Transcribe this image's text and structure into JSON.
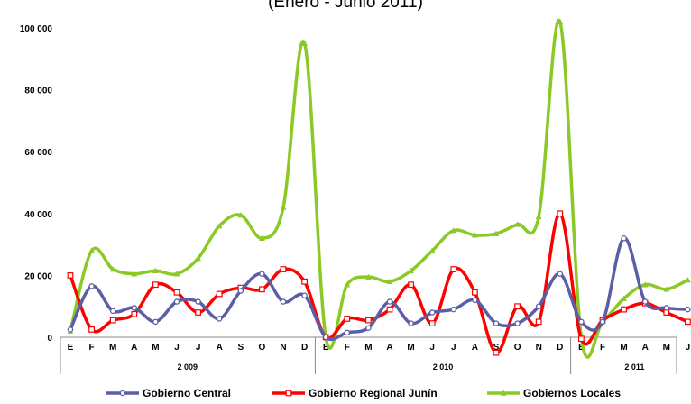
{
  "chart_data": {
    "type": "line",
    "subtitle": "(Enero - Junio 2011)",
    "categories": [
      "E",
      "F",
      "M",
      "A",
      "M",
      "J",
      "J",
      "A",
      "S",
      "O",
      "N",
      "D",
      "E",
      "F",
      "M",
      "A",
      "M",
      "J",
      "J",
      "A",
      "S",
      "O",
      "N",
      "D",
      "E",
      "F",
      "M",
      "A",
      "M",
      "J"
    ],
    "year_groups": [
      {
        "label": "2 009",
        "start": 0,
        "end": 11
      },
      {
        "label": "2 010",
        "start": 12,
        "end": 23
      },
      {
        "label": "2 011",
        "start": 24,
        "end": 29
      }
    ],
    "y_ticks": [
      "0",
      "20 000",
      "40 000",
      "60 000",
      "80 000",
      "100 000"
    ],
    "ylim": [
      0,
      100000
    ],
    "series": [
      {
        "name": "Gobierno Central",
        "color": "#5b5ea6",
        "marker": "circle",
        "values": [
          2500,
          16500,
          8500,
          9500,
          5000,
          11500,
          11500,
          6000,
          15000,
          20500,
          11500,
          13500,
          0,
          1500,
          3000,
          11500,
          4500,
          8000,
          9000,
          12000,
          4500,
          4500,
          10000,
          20500,
          5000,
          5000,
          32000,
          11500,
          9500,
          9000
        ]
      },
      {
        "name": "Gobierno Regional Junín",
        "color": "#ff0000",
        "marker": "square",
        "values": [
          20000,
          2500,
          5500,
          7500,
          17000,
          14500,
          8000,
          14000,
          16000,
          15500,
          22000,
          18000,
          0,
          6000,
          5500,
          9000,
          17000,
          4500,
          22000,
          14500,
          -5000,
          10000,
          5000,
          40000,
          -500,
          5500,
          9000,
          11000,
          8000,
          5000
        ]
      },
      {
        "name": "Gobiernos Locales",
        "color": "#8ac926",
        "marker": "triangle",
        "values": [
          2000,
          28000,
          22000,
          20500,
          21500,
          20500,
          25500,
          36000,
          39500,
          32000,
          42000,
          95000,
          0,
          17000,
          19500,
          18000,
          21500,
          28000,
          34500,
          33000,
          33500,
          36500,
          39000,
          102000,
          0,
          5000,
          12500,
          17000,
          15500,
          18500
        ]
      }
    ],
    "legend_position": "bottom"
  }
}
